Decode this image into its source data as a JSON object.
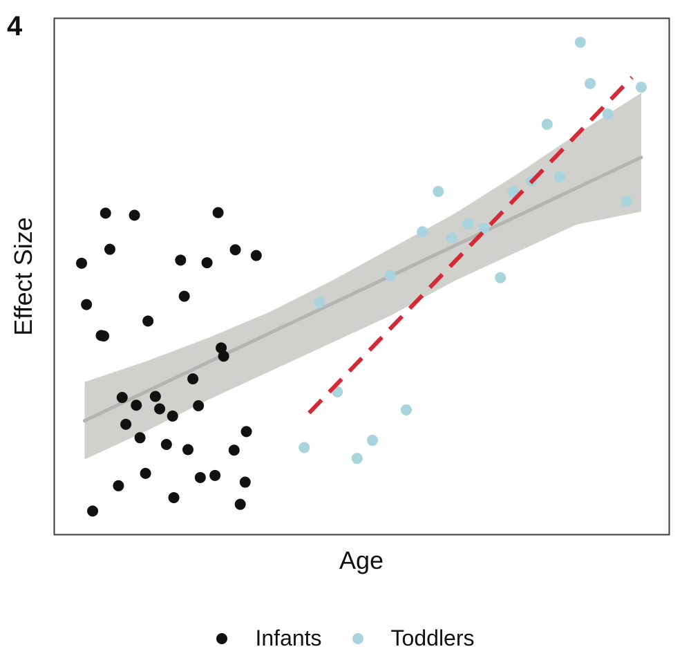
{
  "panel_label": "4",
  "chart_data": {
    "type": "scatter",
    "title": "",
    "xlabel": "Age",
    "ylabel": "Effect Size",
    "xlim": [
      0,
      100
    ],
    "ylim": [
      0,
      100
    ],
    "x_ticks_shown": false,
    "y_ticks_shown": false,
    "grid": false,
    "legend_position": "bottom",
    "series": [
      {
        "name": "Infants",
        "color": "#111111",
        "points": [
          [
            4.5,
            52.5
          ],
          [
            5.3,
            44.5
          ],
          [
            6.3,
            4.5
          ],
          [
            7.7,
            38.5
          ],
          [
            8.1,
            38.4
          ],
          [
            8.4,
            62.2
          ],
          [
            9.1,
            55.2
          ],
          [
            10.5,
            9.4
          ],
          [
            11.1,
            26.5
          ],
          [
            11.7,
            21.3
          ],
          [
            13.1,
            61.8
          ],
          [
            13.4,
            25
          ],
          [
            14,
            18.7
          ],
          [
            14.9,
            11.8
          ],
          [
            15.3,
            41.3
          ],
          [
            16.5,
            26.7
          ],
          [
            17.2,
            24.3
          ],
          [
            18.3,
            17.4
          ],
          [
            19.3,
            22.9
          ],
          [
            19.5,
            7.1
          ],
          [
            20.6,
            53.1
          ],
          [
            21.2,
            46.1
          ],
          [
            21.8,
            16.4
          ],
          [
            22.6,
            30.1
          ],
          [
            23.5,
            24.9
          ],
          [
            23.8,
            11
          ],
          [
            24.9,
            52.6
          ],
          [
            26.2,
            11.4
          ],
          [
            26.7,
            62.3
          ],
          [
            27.2,
            36.1
          ],
          [
            27.6,
            34.5
          ],
          [
            29.3,
            16.3
          ],
          [
            29.5,
            55.1
          ],
          [
            30.3,
            5.8
          ],
          [
            31.1,
            10.1
          ],
          [
            31.3,
            19.9
          ],
          [
            32.9,
            54
          ]
        ]
      },
      {
        "name": "Toddlers",
        "color": "#a8d4dd",
        "points": [
          [
            40.7,
            16.8
          ],
          [
            43.2,
            44.9
          ],
          [
            46.1,
            27.6
          ],
          [
            49.3,
            14.7
          ],
          [
            51.8,
            18.2
          ],
          [
            54.7,
            50.1
          ],
          [
            57.3,
            24.1
          ],
          [
            59.9,
            58.6
          ],
          [
            62.5,
            66.4
          ],
          [
            64.7,
            57.4
          ],
          [
            67.3,
            60.1
          ],
          [
            69.9,
            59.2
          ],
          [
            72.6,
            49.7
          ],
          [
            74.7,
            66.3
          ],
          [
            77.7,
            68.4
          ],
          [
            80.2,
            79.4
          ],
          [
            82.2,
            69.2
          ],
          [
            85.6,
            95.3
          ],
          [
            87.2,
            87.3
          ],
          [
            90.1,
            81.4
          ],
          [
            93.1,
            64.5
          ],
          [
            95.5,
            86.6
          ]
        ]
      }
    ],
    "fit_line": {
      "name": "Overall linear fit",
      "color": "#b4b4b0",
      "x": [
        5,
        95.5
      ],
      "y": [
        22,
        73
      ]
    },
    "confidence_band": {
      "color": "#c8c9c4",
      "x": [
        5,
        15,
        25,
        35,
        45,
        55,
        65,
        75,
        85,
        95.5
      ],
      "upper": [
        29.5,
        33.5,
        38,
        43,
        49,
        55.5,
        62,
        69.5,
        77.5,
        85.5
      ],
      "lower": [
        14.5,
        20,
        26,
        31.5,
        37,
        42.5,
        49,
        54.5,
        60,
        62.5
      ]
    },
    "toddler_trend": {
      "name": "Toddlers trend",
      "color": "#d42a35",
      "style": "dashed",
      "x": [
        41.5,
        94
      ],
      "y": [
        23.5,
        88.5
      ]
    }
  }
}
